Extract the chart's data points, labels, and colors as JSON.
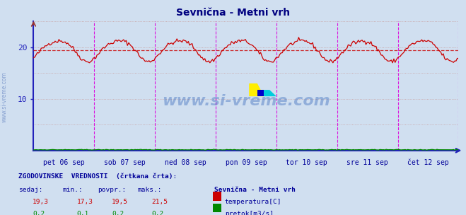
{
  "title": "Sevnična - Metni vrh",
  "title_color": "#000080",
  "bg_color": "#d0dff0",
  "plot_bg_color": "#d0dff0",
  "grid_color": "#c8a0a0",
  "temp_color": "#cc0000",
  "flow_color": "#008800",
  "dashed_color": "#cc0000",
  "vline_color": "#dd00dd",
  "axis_color": "#2222bb",
  "watermark": "www.si-vreme.com",
  "watermark_color": "#3366bb",
  "label_color": "#000099",
  "day_labels": [
    "pet 06 sep",
    "sob 07 sep",
    "ned 08 sep",
    "pon 09 sep",
    "tor 10 sep",
    "sre 11 sep",
    "čet 12 sep"
  ],
  "temp_sedaj": 19.3,
  "temp_min": 17.3,
  "temp_povpr": 19.5,
  "temp_maks": 21.5,
  "flow_sedaj": 0.2,
  "flow_min": 0.1,
  "flow_povpr": 0.2,
  "flow_maks": 0.2,
  "legend_title": "Sevnična - Metni vrh",
  "info_header": "ZGODOVINSKE  VREDNOSTI  (črtkana črta):",
  "col_headers": [
    "sedaj:",
    "min.:",
    "povpr.:",
    "maks.:"
  ],
  "temp_label": "temperatura[C]",
  "flow_label": "pretok[m3/s]",
  "n_points": 336,
  "temp_avg": 19.5,
  "ylim": [
    0,
    25
  ],
  "ytick_labels": [
    20,
    10
  ],
  "ytick_vals": [
    20,
    10
  ],
  "flow_base": 0.15
}
